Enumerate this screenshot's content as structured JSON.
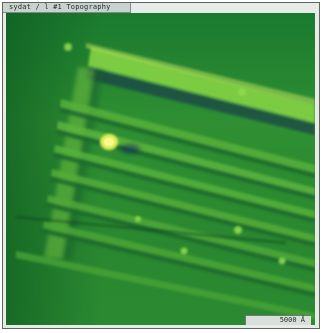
{
  "window": {
    "title": "sydat / l #1 Topography"
  },
  "image": {
    "kind": "topography-scan",
    "colormap": [
      "#0b1f1a",
      "#1b6b2f",
      "#7fcf43",
      "#e2f05a"
    ]
  },
  "scale": {
    "label": "5000 Å"
  }
}
